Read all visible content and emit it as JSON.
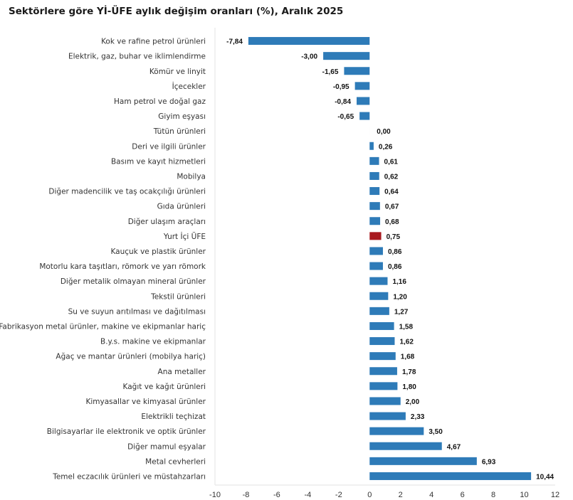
{
  "chart_data": {
    "type": "bar",
    "orientation": "horizontal",
    "title": "Sektörlere göre Yİ-ÜFE aylık değişim oranları (%), Aralık 2025",
    "categories": [
      "Kok ve rafine petrol ürünleri",
      "Elektrik, gaz, buhar ve iklimlendirme",
      "Kömür ve linyit",
      "İçecekler",
      "Ham petrol ve doğal gaz",
      "Giyim eşyası",
      "Tütün ürünleri",
      "Deri ve ilgili ürünler",
      "Basım ve kayıt hizmetleri",
      "Mobilya",
      "Diğer madencilik ve taş ocakçılığı ürünleri",
      "Gıda ürünleri",
      "Diğer ulaşım araçları",
      "Yurt İçi ÜFE",
      "Kauçuk ve plastik ürünler",
      "Motorlu kara taşıtları, römork ve yarı römork",
      "Diğer metalik olmayan mineral ürünler",
      "Tekstil ürünleri",
      "Su ve suyun arıtılması ve dağıtılması",
      "Fabrikasyon metal ürünler, makine ve ekipmanlar hariç",
      "B.y.s. makine ve ekipmanlar",
      "Ağaç ve mantar ürünleri (mobilya hariç)",
      "Ana metaller",
      "Kağıt ve kağıt ürünleri",
      "Kimyasallar ve kimyasal ürünler",
      "Elektrikli teçhizat",
      "Bilgisayarlar ile elektronik ve optik ürünler",
      "Diğer mamul eşyalar",
      "Metal cevherleri",
      "Temel eczacılık ürünleri ve müstahzarları"
    ],
    "values": [
      -7.84,
      -3.0,
      -1.65,
      -0.95,
      -0.84,
      -0.65,
      0.0,
      0.26,
      0.61,
      0.62,
      0.64,
      0.67,
      0.68,
      0.75,
      0.86,
      0.86,
      1.16,
      1.2,
      1.27,
      1.58,
      1.62,
      1.68,
      1.78,
      1.8,
      2.0,
      2.33,
      3.5,
      4.67,
      6.93,
      10.44
    ],
    "labels": [
      "-7,84",
      "-3,00",
      "-1,65",
      "-0,95",
      "-0,84",
      "-0,65",
      "0,00",
      "0,26",
      "0,61",
      "0,62",
      "0,64",
      "0,67",
      "0,68",
      "0,75",
      "0,86",
      "0,86",
      "1,16",
      "1,20",
      "1,27",
      "1,58",
      "1,62",
      "1,68",
      "1,78",
      "1,80",
      "2,00",
      "2,33",
      "3,50",
      "4,67",
      "6,93",
      "10,44"
    ],
    "highlight": "Yurt İçi ÜFE",
    "xlim": [
      -10,
      12
    ],
    "xticks": [
      "-10",
      "-8",
      "-6",
      "-4",
      "-2",
      "0",
      "2",
      "4",
      "6",
      "8",
      "10",
      "12"
    ],
    "grid": false,
    "colors": {
      "bar": "#2e7bb8",
      "highlight": "#a8191f"
    }
  }
}
